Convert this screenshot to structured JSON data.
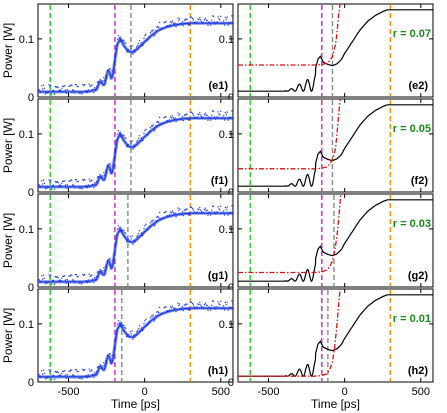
{
  "chart_data": [
    {
      "type": "line",
      "panel_label": "(e1)",
      "xlim": [
        -700,
        580
      ],
      "ylim": [
        0,
        0.16
      ],
      "xticks": [
        "-500",
        "0",
        "500"
      ],
      "yticks": [
        "0",
        "0.1"
      ],
      "ylabel": "Power [W]",
      "xlabel": "",
      "show_xticks": false,
      "series": [
        {
          "kind": "measured-trace",
          "color": "#1f3de0",
          "x": [
            -700,
            -400,
            -340,
            -320,
            -300,
            -280,
            -260,
            -240,
            -220,
            -200,
            -180,
            -160,
            -140,
            -110,
            -80,
            -50,
            -20,
            0,
            50,
            100,
            150,
            200,
            250,
            300,
            400,
            500,
            580
          ],
          "y": [
            0.009,
            0.009,
            0.01,
            0.015,
            0.02,
            0.024,
            0.03,
            0.036,
            0.04,
            0.055,
            0.09,
            0.1,
            0.09,
            0.079,
            0.077,
            0.082,
            0.09,
            0.095,
            0.107,
            0.116,
            0.121,
            0.124,
            0.126,
            0.127,
            0.127,
            0.127,
            0.127
          ]
        }
      ],
      "vlines": [
        {
          "x": -620,
          "color": "#22cc22"
        },
        {
          "x": -195,
          "color": "#cc22cc"
        },
        {
          "x": -90,
          "color": "#888888"
        },
        {
          "x": 300,
          "color": "#ff8800"
        }
      ]
    },
    {
      "type": "line",
      "panel_label": "(e2)",
      "xlim": [
        -700,
        580
      ],
      "ylim": [
        0,
        0.16
      ],
      "xticks": [
        "-500",
        "0",
        "500"
      ],
      "yticks": [
        "0",
        "0.1"
      ],
      "ylabel": "",
      "xlabel": "",
      "show_xticks": false,
      "r_label": "r = 0.07",
      "series": [
        {
          "kind": "model",
          "color": "#000000",
          "x": [
            -700,
            -400,
            -330,
            -300,
            -270,
            -240,
            -210,
            -190,
            -175,
            -160,
            -140,
            -110,
            -80,
            -50,
            -20,
            0,
            50,
            100,
            150,
            200,
            250,
            280,
            300,
            400,
            580
          ],
          "y": [
            0.01,
            0.01,
            0.012,
            0.016,
            0.022,
            0.03,
            0.038,
            0.05,
            0.065,
            0.07,
            0.06,
            0.056,
            0.054,
            0.057,
            0.065,
            0.075,
            0.095,
            0.115,
            0.13,
            0.14,
            0.147,
            0.15,
            0.15,
            0.15,
            0.15
          ]
        },
        {
          "kind": "threshold",
          "color": "#dd1111",
          "x": [
            -700,
            -400,
            -200,
            -150,
            -120,
            -100,
            -80,
            -60,
            -50,
            -40,
            -30
          ],
          "y": [
            0.055,
            0.055,
            0.055,
            0.056,
            0.058,
            0.062,
            0.07,
            0.09,
            0.11,
            0.14,
            0.16
          ]
        }
      ],
      "vlines": [
        {
          "x": -620,
          "color": "#22cc22"
        },
        {
          "x": -150,
          "color": "#cc22cc"
        },
        {
          "x": -80,
          "color": "#888888"
        },
        {
          "x": 300,
          "color": "#ff8800"
        }
      ]
    },
    {
      "type": "line",
      "panel_label": "(f1)",
      "xlim": [
        -700,
        580
      ],
      "ylim": [
        0,
        0.16
      ],
      "xticks": [
        "-500",
        "0",
        "500"
      ],
      "yticks": [
        "0",
        "0.1"
      ],
      "ylabel": "Power [W]",
      "xlabel": "",
      "show_xticks": false,
      "series": [
        {
          "kind": "measured-trace",
          "color": "#1f3de0",
          "x": [
            -700,
            -400,
            -340,
            -320,
            -300,
            -280,
            -260,
            -240,
            -220,
            -200,
            -180,
            -160,
            -140,
            -110,
            -80,
            -50,
            -20,
            0,
            50,
            100,
            150,
            200,
            250,
            300,
            400,
            500,
            580
          ],
          "y": [
            0.009,
            0.009,
            0.01,
            0.015,
            0.02,
            0.024,
            0.03,
            0.036,
            0.04,
            0.055,
            0.09,
            0.1,
            0.09,
            0.079,
            0.077,
            0.082,
            0.09,
            0.095,
            0.107,
            0.116,
            0.121,
            0.124,
            0.126,
            0.127,
            0.127,
            0.127,
            0.127
          ]
        }
      ],
      "vlines": [
        {
          "x": -620,
          "color": "#22cc22"
        },
        {
          "x": -195,
          "color": "#cc22cc"
        },
        {
          "x": -90,
          "color": "#888888"
        },
        {
          "x": 300,
          "color": "#ff8800"
        }
      ]
    },
    {
      "type": "line",
      "panel_label": "(f2)",
      "xlim": [
        -700,
        580
      ],
      "ylim": [
        0,
        0.16
      ],
      "xticks": [
        "-500",
        "0",
        "500"
      ],
      "yticks": [
        "0",
        "0.1"
      ],
      "ylabel": "",
      "xlabel": "",
      "show_xticks": false,
      "r_label": "r = 0.05",
      "series": [
        {
          "kind": "model",
          "color": "#000000",
          "x": [
            -700,
            -400,
            -330,
            -300,
            -270,
            -240,
            -210,
            -190,
            -175,
            -160,
            -140,
            -110,
            -80,
            -50,
            -20,
            0,
            50,
            100,
            150,
            200,
            250,
            280,
            300,
            400,
            580
          ],
          "y": [
            0.01,
            0.01,
            0.012,
            0.016,
            0.022,
            0.03,
            0.038,
            0.05,
            0.065,
            0.07,
            0.06,
            0.056,
            0.054,
            0.057,
            0.065,
            0.075,
            0.095,
            0.115,
            0.13,
            0.14,
            0.147,
            0.15,
            0.15,
            0.15,
            0.15
          ]
        },
        {
          "kind": "threshold",
          "color": "#dd1111",
          "x": [
            -700,
            -400,
            -200,
            -150,
            -120,
            -100,
            -80,
            -60,
            -50,
            -40,
            -30
          ],
          "y": [
            0.04,
            0.04,
            0.04,
            0.041,
            0.043,
            0.047,
            0.055,
            0.075,
            0.1,
            0.13,
            0.16
          ]
        }
      ],
      "vlines": [
        {
          "x": -620,
          "color": "#22cc22"
        },
        {
          "x": -150,
          "color": "#cc22cc"
        },
        {
          "x": -80,
          "color": "#888888"
        },
        {
          "x": 300,
          "color": "#ff8800"
        }
      ]
    },
    {
      "type": "line",
      "panel_label": "(g1)",
      "xlim": [
        -700,
        580
      ],
      "ylim": [
        0,
        0.16
      ],
      "xticks": [
        "-500",
        "0",
        "500"
      ],
      "yticks": [
        "0",
        "0.1"
      ],
      "ylabel": "Power [W]",
      "xlabel": "",
      "show_xticks": false,
      "series": [
        {
          "kind": "measured-trace",
          "color": "#1f3de0",
          "x": [
            -700,
            -400,
            -340,
            -320,
            -300,
            -280,
            -260,
            -240,
            -220,
            -200,
            -180,
            -160,
            -140,
            -110,
            -80,
            -50,
            -20,
            0,
            50,
            100,
            150,
            200,
            250,
            300,
            400,
            500,
            580
          ],
          "y": [
            0.009,
            0.009,
            0.01,
            0.015,
            0.02,
            0.024,
            0.03,
            0.036,
            0.04,
            0.055,
            0.09,
            0.1,
            0.09,
            0.079,
            0.077,
            0.082,
            0.09,
            0.095,
            0.107,
            0.116,
            0.121,
            0.124,
            0.126,
            0.127,
            0.127,
            0.127,
            0.127
          ]
        }
      ],
      "vlines": [
        {
          "x": -620,
          "color": "#22cc22"
        },
        {
          "x": -195,
          "color": "#cc22cc"
        },
        {
          "x": -110,
          "color": "#888888"
        },
        {
          "x": 300,
          "color": "#ff8800"
        }
      ]
    },
    {
      "type": "line",
      "panel_label": "(g2)",
      "xlim": [
        -700,
        580
      ],
      "ylim": [
        0,
        0.16
      ],
      "xticks": [
        "-500",
        "0",
        "500"
      ],
      "yticks": [
        "0",
        "0.1"
      ],
      "ylabel": "",
      "xlabel": "",
      "show_xticks": false,
      "r_label": "r = 0.03",
      "series": [
        {
          "kind": "model",
          "color": "#000000",
          "x": [
            -700,
            -400,
            -330,
            -300,
            -270,
            -240,
            -210,
            -190,
            -175,
            -160,
            -140,
            -110,
            -80,
            -50,
            -20,
            0,
            50,
            100,
            150,
            200,
            250,
            280,
            300,
            400,
            580
          ],
          "y": [
            0.01,
            0.01,
            0.012,
            0.016,
            0.022,
            0.03,
            0.038,
            0.05,
            0.065,
            0.07,
            0.06,
            0.056,
            0.054,
            0.057,
            0.065,
            0.075,
            0.095,
            0.115,
            0.13,
            0.14,
            0.147,
            0.15,
            0.15,
            0.15,
            0.15
          ]
        },
        {
          "kind": "threshold",
          "color": "#dd1111",
          "x": [
            -700,
            -400,
            -200,
            -150,
            -120,
            -100,
            -80,
            -60,
            -45,
            -35,
            -25
          ],
          "y": [
            0.025,
            0.025,
            0.025,
            0.026,
            0.029,
            0.034,
            0.045,
            0.07,
            0.1,
            0.13,
            0.16
          ]
        }
      ],
      "vlines": [
        {
          "x": -620,
          "color": "#22cc22"
        },
        {
          "x": -150,
          "color": "#cc22cc"
        },
        {
          "x": -70,
          "color": "#888888"
        },
        {
          "x": 300,
          "color": "#ff8800"
        }
      ]
    },
    {
      "type": "line",
      "panel_label": "(h1)",
      "xlim": [
        -700,
        580
      ],
      "ylim": [
        0,
        0.16
      ],
      "xticks": [
        "-500",
        "0",
        "500"
      ],
      "yticks": [
        "0",
        "0.1"
      ],
      "ylabel": "Power [W]",
      "xlabel": "Time [ps]",
      "show_xticks": true,
      "series": [
        {
          "kind": "measured-trace",
          "color": "#1f3de0",
          "x": [
            -700,
            -400,
            -340,
            -320,
            -300,
            -280,
            -260,
            -240,
            -220,
            -200,
            -180,
            -160,
            -140,
            -110,
            -80,
            -50,
            -20,
            0,
            50,
            100,
            150,
            200,
            250,
            300,
            400,
            500,
            580
          ],
          "y": [
            0.009,
            0.009,
            0.01,
            0.015,
            0.02,
            0.024,
            0.03,
            0.036,
            0.04,
            0.055,
            0.09,
            0.1,
            0.09,
            0.079,
            0.077,
            0.082,
            0.09,
            0.095,
            0.107,
            0.116,
            0.121,
            0.124,
            0.126,
            0.127,
            0.127,
            0.127,
            0.127
          ]
        }
      ],
      "vlines": [
        {
          "x": -620,
          "color": "#22cc22"
        },
        {
          "x": -195,
          "color": "#cc22cc"
        },
        {
          "x": -150,
          "color": "#888888"
        },
        {
          "x": 300,
          "color": "#ff8800"
        }
      ]
    },
    {
      "type": "line",
      "panel_label": "(h2)",
      "xlim": [
        -700,
        580
      ],
      "ylim": [
        0,
        0.16
      ],
      "xticks": [
        "-500",
        "0",
        "500"
      ],
      "yticks": [
        "0",
        "0.1"
      ],
      "ylabel": "",
      "xlabel": "Time [ps]",
      "show_xticks": true,
      "r_label": "r = 0.01",
      "series": [
        {
          "kind": "model",
          "color": "#000000",
          "x": [
            -700,
            -400,
            -330,
            -300,
            -270,
            -240,
            -210,
            -190,
            -175,
            -160,
            -140,
            -110,
            -80,
            -50,
            -20,
            0,
            50,
            100,
            150,
            200,
            250,
            280,
            300,
            400,
            580
          ],
          "y": [
            0.01,
            0.01,
            0.012,
            0.016,
            0.022,
            0.03,
            0.038,
            0.05,
            0.065,
            0.07,
            0.06,
            0.056,
            0.054,
            0.057,
            0.065,
            0.075,
            0.095,
            0.115,
            0.13,
            0.14,
            0.147,
            0.15,
            0.15,
            0.15,
            0.15
          ]
        },
        {
          "kind": "threshold",
          "color": "#dd1111",
          "x": [
            -700,
            -400,
            -200,
            -150,
            -120,
            -100,
            -80,
            -65,
            -50,
            -40,
            -30
          ],
          "y": [
            0.01,
            0.01,
            0.01,
            0.011,
            0.014,
            0.02,
            0.035,
            0.06,
            0.1,
            0.13,
            0.16
          ]
        }
      ],
      "vlines": [
        {
          "x": -620,
          "color": "#22cc22"
        },
        {
          "x": -150,
          "color": "#cc22cc"
        },
        {
          "x": -110,
          "color": "#888888"
        },
        {
          "x": 300,
          "color": "#ff8800"
        }
      ]
    }
  ],
  "colors": {
    "r_label": "#1a8a1a",
    "axis": "#000000"
  }
}
